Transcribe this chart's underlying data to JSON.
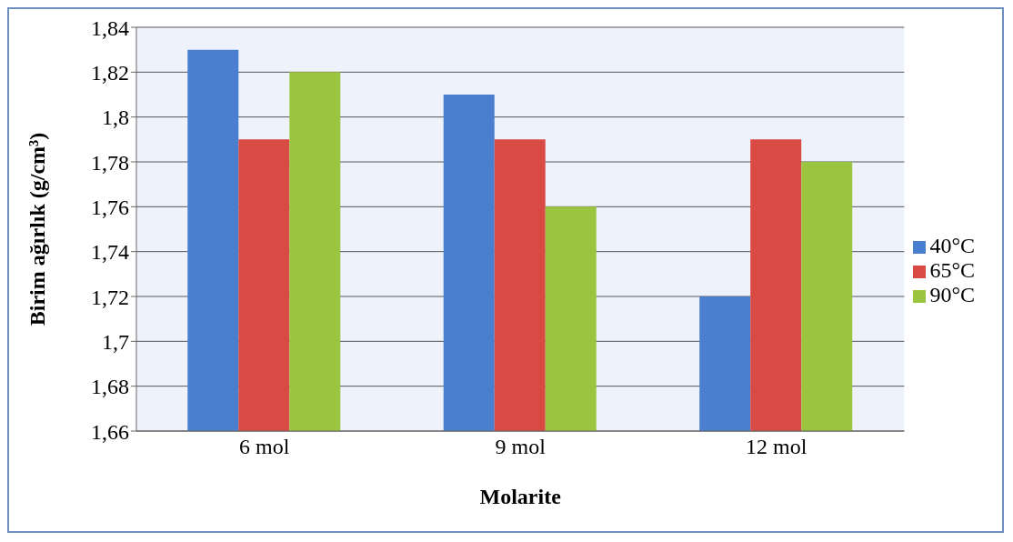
{
  "chart_data": {
    "type": "bar",
    "xlabel": "Molarite",
    "ylabel": "Birim ağırlık (g/cm³)",
    "categories": [
      "6 mol",
      "9 mol",
      "12 mol"
    ],
    "series": [
      {
        "name": "40°C",
        "color": "#4a7fd0",
        "values": [
          1.83,
          1.81,
          1.72
        ]
      },
      {
        "name": "65°C",
        "color": "#d94a45",
        "values": [
          1.79,
          1.79,
          1.79
        ]
      },
      {
        "name": "90°C",
        "color": "#9bc43f",
        "values": [
          1.82,
          1.76,
          1.78
        ]
      }
    ],
    "ylim": [
      1.66,
      1.84
    ],
    "yticks": [
      {
        "value": 1.66,
        "label": "1,66"
      },
      {
        "value": 1.68,
        "label": "1,68"
      },
      {
        "value": 1.7,
        "label": "1,7"
      },
      {
        "value": 1.72,
        "label": "1,72"
      },
      {
        "value": 1.74,
        "label": "1,74"
      },
      {
        "value": 1.76,
        "label": "1,76"
      },
      {
        "value": 1.78,
        "label": "1,78"
      },
      {
        "value": 1.8,
        "label": "1,8"
      },
      {
        "value": 1.82,
        "label": "1,82"
      },
      {
        "value": 1.84,
        "label": "1,84"
      }
    ],
    "grid": "y",
    "legend": "right"
  }
}
